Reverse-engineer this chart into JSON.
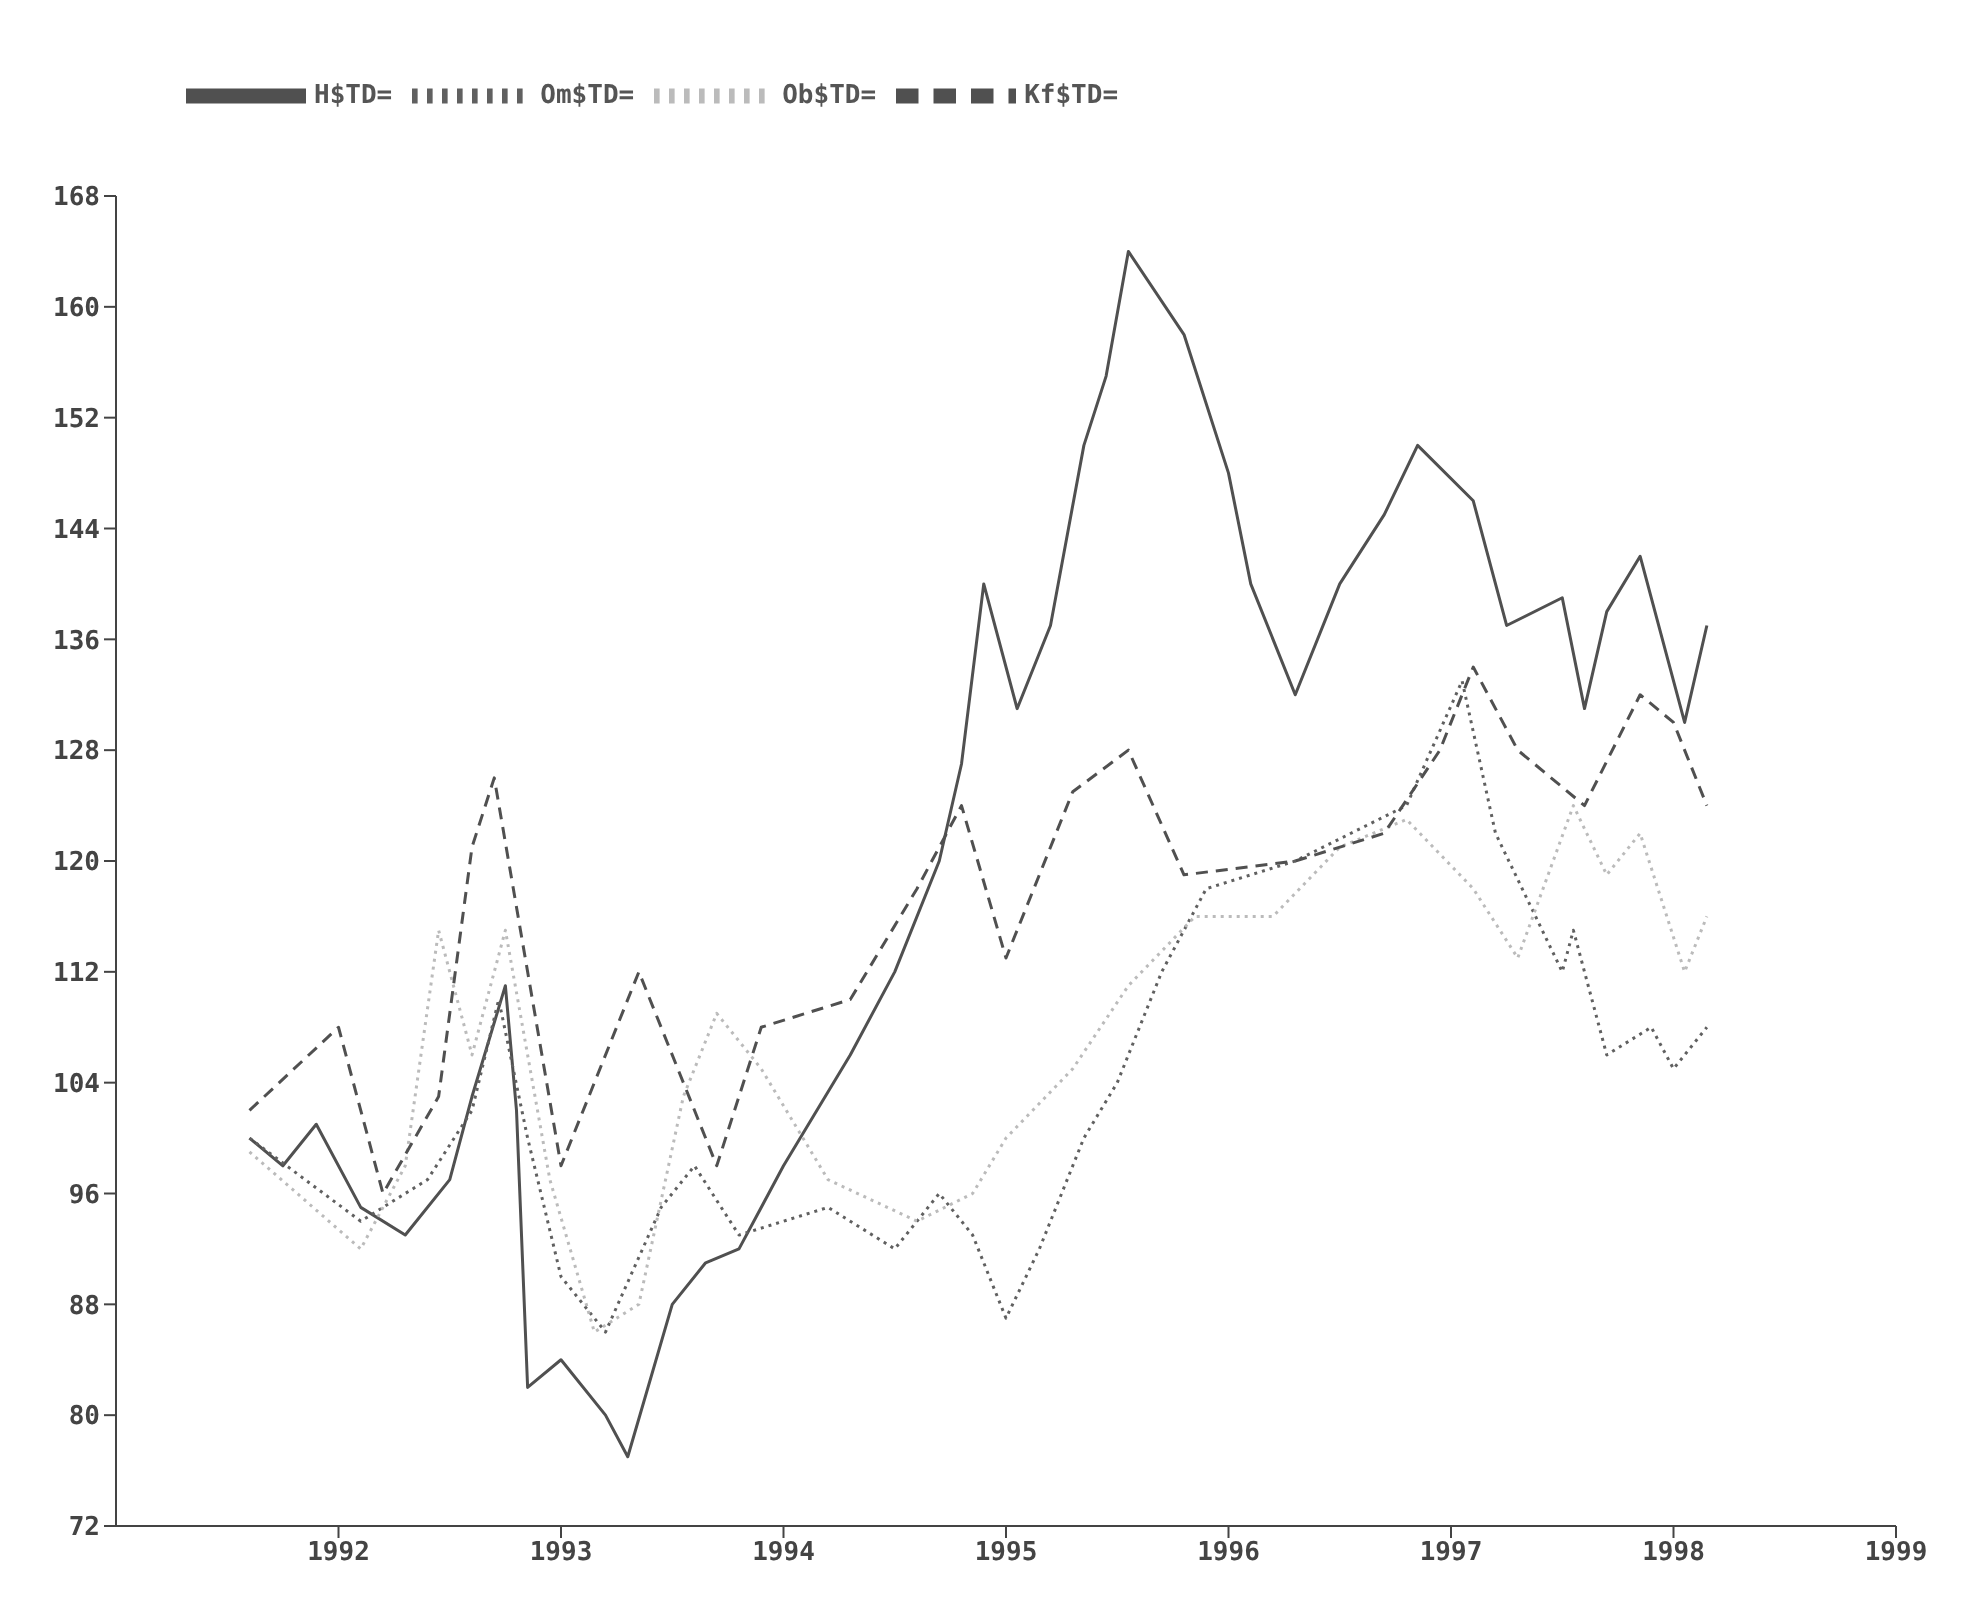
{
  "chart_data": {
    "type": "line",
    "legend": "top left",
    "marker": "none",
    "xlim": [
      1991,
      1999
    ],
    "xticks": [
      1992,
      1993,
      1994,
      1995,
      1996,
      1997,
      1998,
      1999
    ],
    "ylim": [
      72,
      168
    ],
    "yticks": [
      72,
      80,
      88,
      96,
      104,
      112,
      120,
      128,
      136,
      144,
      152,
      160,
      168
    ],
    "series": [
      {
        "name": "H$TD=",
        "color": "#505050",
        "line_style": "solid",
        "x": [
          1991.6,
          1991.75,
          1991.9,
          1992.1,
          1992.3,
          1992.5,
          1992.6,
          1992.75,
          1992.8,
          1992.85,
          1993.0,
          1993.2,
          1993.3,
          1993.5,
          1993.65,
          1993.8,
          1994.0,
          1994.3,
          1994.5,
          1994.7,
          1994.8,
          1994.9,
          1995.05,
          1995.2,
          1995.35,
          1995.45,
          1995.55,
          1995.8,
          1996.0,
          1996.1,
          1996.3,
          1996.5,
          1996.7,
          1996.85,
          1997.1,
          1997.25,
          1997.5,
          1997.6,
          1997.7,
          1997.85,
          1998.05,
          1998.15
        ],
        "values": [
          100,
          98,
          101,
          95,
          93,
          97,
          103,
          111,
          102,
          82,
          84,
          80,
          77,
          88,
          91,
          92,
          98,
          106,
          112,
          120,
          127,
          140,
          131,
          137,
          150,
          155,
          164,
          158,
          148,
          140,
          132,
          140,
          145,
          150,
          146,
          137,
          139,
          131,
          138,
          142,
          130,
          137
        ]
      },
      {
        "name": "Om$TD=",
        "color": "#606060",
        "line_style": "dotted",
        "x": [
          1991.6,
          1992.1,
          1992.4,
          1992.6,
          1992.72,
          1992.85,
          1993.0,
          1993.2,
          1993.45,
          1993.6,
          1993.8,
          1994.2,
          1994.5,
          1994.7,
          1994.85,
          1995.0,
          1995.15,
          1995.35,
          1995.5,
          1995.7,
          1995.9,
          1996.3,
          1996.8,
          1997.05,
          1997.2,
          1997.5,
          1997.55,
          1997.7,
          1997.9,
          1998.0,
          1998.15
        ],
        "values": [
          100,
          94,
          97,
          102,
          110,
          100,
          90,
          86,
          95,
          98,
          93,
          95,
          92,
          96,
          93,
          87,
          92,
          100,
          104,
          112,
          118,
          120,
          124,
          133,
          122,
          112,
          115,
          106,
          108,
          105,
          108
        ]
      },
      {
        "name": "Ob$TD=",
        "color": "#bbbbbb",
        "line_style": "dotted",
        "x": [
          1991.6,
          1992.1,
          1992.3,
          1992.45,
          1992.6,
          1992.75,
          1992.95,
          1993.15,
          1993.35,
          1993.55,
          1993.7,
          1993.9,
          1994.2,
          1994.6,
          1994.85,
          1995.0,
          1995.3,
          1995.55,
          1995.85,
          1996.2,
          1996.5,
          1996.8,
          1997.1,
          1997.3,
          1997.55,
          1997.7,
          1997.85,
          1998.05,
          1998.15
        ],
        "values": [
          99,
          92,
          98,
          115,
          106,
          115,
          97,
          86,
          88,
          103,
          109,
          105,
          97,
          94,
          96,
          100,
          105,
          111,
          116,
          116,
          121,
          123,
          118,
          113,
          124,
          119,
          122,
          112,
          116
        ]
      },
      {
        "name": "Kf$TD=",
        "color": "#505050",
        "line_style": "dashed",
        "x": [
          1991.6,
          1992.0,
          1992.2,
          1992.45,
          1992.6,
          1992.7,
          1992.85,
          1993.0,
          1993.35,
          1993.7,
          1993.9,
          1994.3,
          1994.6,
          1994.8,
          1995.0,
          1995.3,
          1995.55,
          1995.8,
          1996.3,
          1996.7,
          1996.95,
          1997.1,
          1997.3,
          1997.6,
          1997.85,
          1998.0,
          1998.15
        ],
        "values": [
          102,
          108,
          96,
          103,
          121,
          126,
          112,
          98,
          112,
          98,
          108,
          110,
          118,
          124,
          113,
          125,
          128,
          119,
          120,
          122,
          128,
          134,
          128,
          124,
          132,
          130,
          124
        ]
      }
    ]
  }
}
